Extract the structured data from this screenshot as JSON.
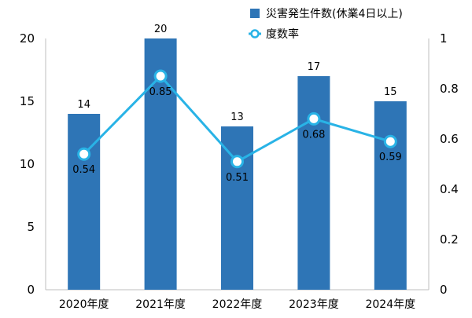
{
  "chart_data": {
    "type": "bar",
    "categories": [
      "2020年度",
      "2021年度",
      "2022年度",
      "2023年度",
      "2024年度"
    ],
    "series": [
      {
        "name": "災害発生件数(休業4日以上)",
        "type": "bar",
        "axis": "left",
        "values": [
          14,
          20,
          13,
          17,
          15
        ],
        "labels": [
          "14",
          "20",
          "13",
          "17",
          "15"
        ],
        "color": "#2e75b6"
      },
      {
        "name": "度数率",
        "type": "line",
        "axis": "right",
        "values": [
          0.54,
          0.85,
          0.51,
          0.68,
          0.59
        ],
        "labels": [
          "0.54",
          "0.85",
          "0.51",
          "0.68",
          "0.59"
        ],
        "color": "#29b3e6"
      }
    ],
    "y_left": {
      "min": 0,
      "max": 20,
      "ticks": [
        "0",
        "5",
        "10",
        "15",
        "20"
      ]
    },
    "y_right": {
      "min": 0,
      "max": 1,
      "ticks": [
        "0",
        "0.2",
        "0.4",
        "0.6",
        "0.8",
        "1"
      ]
    },
    "legend_position": "top-right",
    "grid": false
  }
}
